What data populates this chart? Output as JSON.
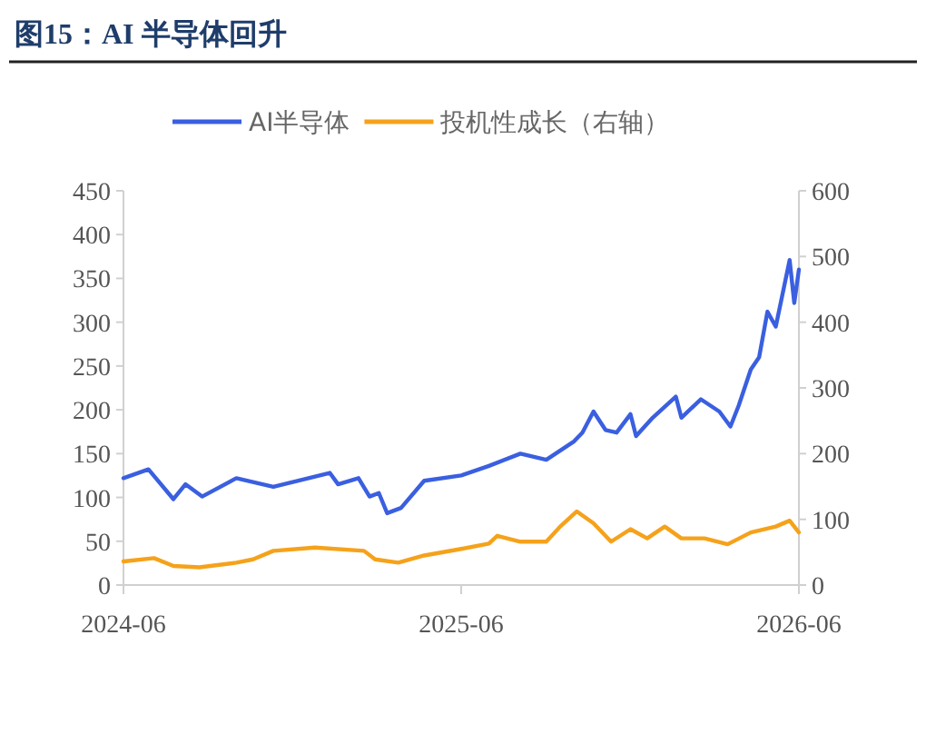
{
  "chart_data": {
    "type": "line",
    "title": "图15：AI 半导体回升",
    "x": [
      "2024-06-01",
      "2024-06-28",
      "2024-07-25",
      "2024-08-07",
      "2024-08-25",
      "2024-10-01",
      "2024-11-10",
      "2025-01-10",
      "2025-01-19",
      "2025-02-10",
      "2025-02-22",
      "2025-03-04",
      "2025-03-13",
      "2025-03-28",
      "2025-04-22",
      "2025-06-01",
      "2025-07-01",
      "2025-08-04",
      "2025-09-01",
      "2025-10-01",
      "2025-10-10",
      "2025-10-22",
      "2025-11-04",
      "2025-11-16",
      "2025-12-01",
      "2025-12-07",
      "2025-12-25",
      "2026-01-19",
      "2026-01-25",
      "2026-02-15",
      "2026-03-07",
      "2026-03-19",
      "2026-03-28",
      "2026-04-10",
      "2026-04-19",
      "2026-04-28",
      "2026-05-07",
      "2026-05-22",
      "2026-05-27",
      "2026-06-01"
    ],
    "series": [
      {
        "name": "AI半导体",
        "color": "#3a5fe0",
        "values": [
          122,
          132,
          98,
          115,
          101,
          122,
          112,
          128,
          115,
          122,
          101,
          105,
          82,
          88,
          119,
          125,
          136,
          150,
          143,
          164,
          174,
          198,
          177,
          174,
          195,
          170,
          191,
          215,
          191,
          212,
          198,
          181,
          205,
          246,
          260,
          312,
          295,
          371,
          322,
          360
        ]
      },
      {
        "name": "投机性成长（右轴）",
        "color": "#f5a21b",
        "axis": "y2",
        "x": [
          "2024-06-01",
          "2024-07-04",
          "2024-07-25",
          "2024-08-22",
          "2024-10-01",
          "2024-10-19",
          "2024-11-10",
          "2024-12-25",
          "2025-02-16",
          "2025-02-28",
          "2025-03-25",
          "2025-04-22",
          "2025-06-01",
          "2025-07-01",
          "2025-07-10",
          "2025-08-04",
          "2025-09-01",
          "2025-09-16",
          "2025-10-04",
          "2025-10-22",
          "2025-11-10",
          "2025-12-01",
          "2025-12-19",
          "2026-01-07",
          "2026-01-25",
          "2026-02-19",
          "2026-03-16",
          "2026-04-10",
          "2026-05-07",
          "2026-05-22",
          "2026-06-01"
        ],
        "values": [
          36,
          41,
          29,
          27,
          34,
          39,
          52,
          57,
          52,
          39,
          34,
          45,
          55,
          63,
          75,
          66,
          66,
          89,
          112,
          94,
          66,
          85,
          71,
          89,
          71,
          71,
          62,
          80,
          89,
          98,
          80
        ]
      }
    ],
    "xlim": [
      "2024-06",
      "2026-06"
    ],
    "xticks": [
      "2024-06",
      "2025-06",
      "2026-06"
    ],
    "ylim": [
      0,
      450
    ],
    "yticks": [
      0,
      50,
      100,
      150,
      200,
      250,
      300,
      350,
      400,
      450
    ],
    "y2lim": [
      0,
      600
    ],
    "y2ticks": [
      0,
      100,
      200,
      300,
      400,
      500,
      600
    ],
    "grid": false,
    "legend": "top"
  }
}
